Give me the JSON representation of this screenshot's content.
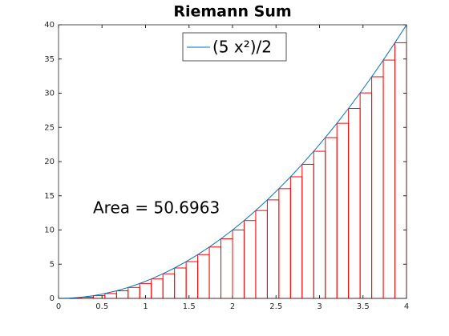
{
  "chart_data": {
    "type": "riemann",
    "title": "Riemann Sum",
    "annotation": "Area = 50.6963",
    "xlim": [
      0,
      4
    ],
    "ylim": [
      0,
      40
    ],
    "xticks": [
      0,
      0.5,
      1,
      1.5,
      2,
      2.5,
      3,
      3.5,
      4
    ],
    "yticks": [
      0,
      5,
      10,
      15,
      20,
      25,
      30,
      35,
      40
    ],
    "legend": "top",
    "curve": {
      "name": "(5 x²)/2",
      "color": "#0072bd",
      "x": [
        0,
        0.1333,
        0.2667,
        0.4,
        0.5333,
        0.6667,
        0.8,
        0.9333,
        1.0667,
        1.2,
        1.3333,
        1.4667,
        1.6,
        1.7333,
        1.8667,
        2,
        2.1333,
        2.2667,
        2.4,
        2.5333,
        2.6667,
        2.8,
        2.9333,
        3.0667,
        3.2,
        3.3333,
        3.4667,
        3.6,
        3.7333,
        3.8667,
        4
      ],
      "values": [
        0,
        0.0444,
        0.1778,
        0.4,
        0.7111,
        1.1111,
        1.6,
        2.1778,
        2.8444,
        3.6,
        4.4444,
        5.3778,
        6.4,
        7.5111,
        8.7111,
        10,
        11.3778,
        12.8444,
        14.4,
        16.0444,
        17.7778,
        19.6,
        21.5111,
        23.5111,
        25.6,
        27.7778,
        30.0444,
        32.4,
        34.8444,
        37.3778,
        40
      ]
    },
    "bars": {
      "color": "#ff0000",
      "bins": [
        0,
        0.1333,
        0.2667,
        0.4,
        0.5333,
        0.6667,
        0.8,
        0.9333,
        1.0667,
        1.2,
        1.3333,
        1.4667,
        1.6,
        1.7333,
        1.8667,
        2,
        2.1333,
        2.2667,
        2.4,
        2.5333,
        2.6667,
        2.8,
        2.9333,
        3.0667,
        3.2,
        3.3333,
        3.4667,
        3.6,
        3.7333,
        3.8667,
        4
      ],
      "values": [
        0,
        0.0444,
        0.1778,
        0.4,
        0.7111,
        1.1111,
        1.6,
        2.1778,
        2.8444,
        3.6,
        4.4444,
        5.3778,
        6.4,
        7.5111,
        8.7111,
        10,
        11.3778,
        12.8444,
        14.4,
        16.0444,
        17.7778,
        19.6,
        21.5111,
        23.5111,
        25.6,
        27.7778,
        30.0444,
        32.4,
        34.8444,
        37.3778
      ]
    }
  }
}
